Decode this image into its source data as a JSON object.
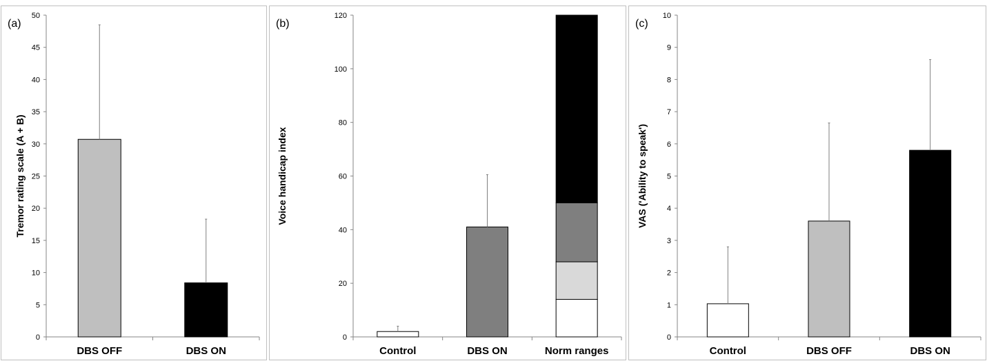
{
  "chart_data": [
    {
      "type": "bar",
      "panel_label": "(a)",
      "ylabel": "Tremor rating scale (A + B)",
      "ylim": [
        0,
        50
      ],
      "yticks": [
        0,
        5,
        10,
        15,
        20,
        25,
        30,
        35,
        40,
        45,
        50
      ],
      "categories": [
        "DBS OFF",
        "DBS ON"
      ],
      "values": [
        30.7,
        8.4
      ],
      "error_upper": [
        48.5,
        18.3
      ],
      "colors": [
        "#bfbfbf",
        "#000000"
      ]
    },
    {
      "type": "bar",
      "panel_label": "(b)",
      "ylabel": "Voice handicap index",
      "ylim": [
        0,
        120
      ],
      "yticks": [
        0,
        20,
        40,
        60,
        80,
        100,
        120
      ],
      "categories": [
        "Control",
        "DBS ON",
        "Norm ranges"
      ],
      "values": [
        2,
        41,
        null
      ],
      "error_upper": [
        4,
        60.5,
        null
      ],
      "colors": [
        "#ffffff",
        "#7f7f7f",
        null
      ],
      "norm_ranges": [
        {
          "from": 0,
          "to": 14,
          "color": "#ffffff"
        },
        {
          "from": 14,
          "to": 28,
          "color": "#d9d9d9"
        },
        {
          "from": 28,
          "to": 50,
          "color": "#7f7f7f"
        },
        {
          "from": 50,
          "to": 120,
          "color": "#000000"
        }
      ]
    },
    {
      "type": "bar",
      "panel_label": "(c)",
      "ylabel": "VAS ('Ability to speak')",
      "ylim": [
        0,
        10
      ],
      "yticks": [
        0,
        1,
        2,
        3,
        4,
        5,
        6,
        7,
        8,
        9,
        10
      ],
      "categories": [
        "Control",
        "DBS OFF",
        "DBS ON"
      ],
      "values": [
        1.03,
        3.6,
        5.8
      ],
      "error_upper": [
        2.8,
        6.65,
        8.62
      ],
      "colors": [
        "#ffffff",
        "#bfbfbf",
        "#000000"
      ]
    }
  ]
}
